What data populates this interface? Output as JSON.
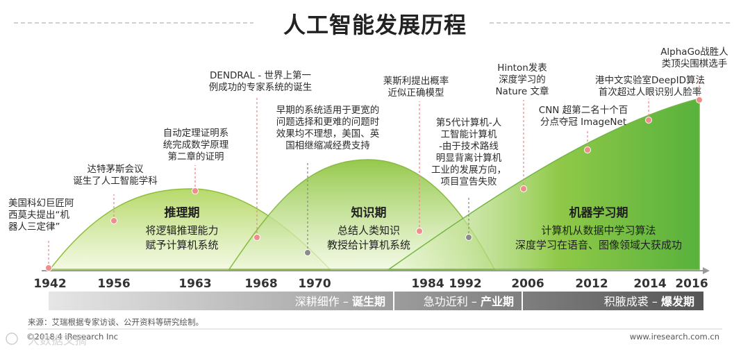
{
  "title": "人工智能发展历程",
  "chart_data": {
    "type": "area",
    "x_ticks": [
      "1942",
      "1956",
      "1963",
      "1968",
      "1970",
      "1984",
      "1992",
      "2006",
      "2012",
      "2014",
      "2016"
    ],
    "eras": [
      {
        "name": "推理期",
        "desc": [
          "将逻辑推理能力",
          "赋予计算机系统"
        ]
      },
      {
        "name": "知识期",
        "desc": [
          "总结人类知识",
          "教授给计算机系统"
        ]
      },
      {
        "name": "机器学习期",
        "desc": [
          "计算机从数据中学习算法",
          "深度学习在语音、图像领域大获成功"
        ]
      }
    ],
    "events": [
      {
        "lines": [
          "美国科幻巨匠阿",
          "西莫夫提出“机",
          "器人三定律”"
        ]
      },
      {
        "lines": [
          "达特茅斯会议",
          "诞生了人工智能学科"
        ]
      },
      {
        "lines": [
          "自动定理证明系",
          "统完成数学原理",
          "第二章的证明"
        ]
      },
      {
        "lines": [
          "DENDRAL - 世界上第一",
          "例成功的专家系统的诞生"
        ]
      },
      {
        "lines": [
          "早期的系统适用于更宽的",
          "问题选择和更难的问题时",
          "效果均不理想，美国、英",
          "国相继缩减经费支持"
        ]
      },
      {
        "lines": [
          "莱斯利提出概率",
          "近似正确模型"
        ]
      },
      {
        "lines": [
          "第5代计算机-人",
          "工智能计算机",
          "-由于技术路线",
          "明显背离计算机",
          "工业的发展方向，",
          "项目宣告失败"
        ]
      },
      {
        "lines": [
          "Hinton发表",
          "深度学习的",
          "Nature 文章"
        ]
      },
      {
        "lines": [
          "CNN 超第二名十个百",
          "分点夺冠 ImageNet"
        ]
      },
      {
        "lines": [
          "港中文实验室DeepID算法",
          "首次超过人眼识别人脸率"
        ]
      },
      {
        "lines": [
          "AlphaGo战胜人",
          "类顶尖围棋选手"
        ]
      }
    ],
    "phases": [
      {
        "label": "深耕细作 – ",
        "bold": "诞生期"
      },
      {
        "label": "急功近利 – ",
        "bold": "产业期"
      },
      {
        "label": "积腋成裘 – ",
        "bold": "爆发期"
      }
    ]
  },
  "footer": {
    "source": "来源：艾瑞根据专家访谈、公开资料等研究绘制。",
    "copyright": "©2018.4 iResearch Inc",
    "url": "www.iresearch.com.cn"
  },
  "watermark": "大数据文摘"
}
